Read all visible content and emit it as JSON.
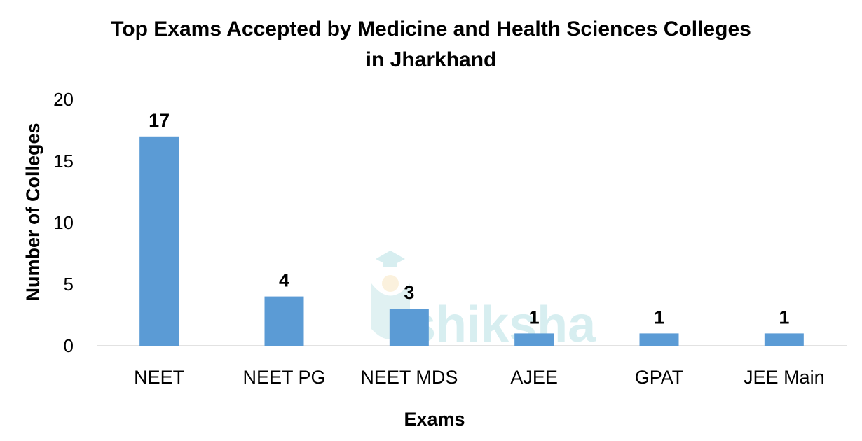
{
  "watermark": {
    "text": "shiksha",
    "icon": "graduation-cap-icon"
  },
  "chart_data": {
    "type": "bar",
    "title_lines": [
      "Top Exams Accepted by Medicine and Health Sciences Colleges",
      "in Jharkhand"
    ],
    "xlabel": "Exams",
    "ylabel": "Number of Colleges",
    "categories": [
      "NEET",
      "NEET PG",
      "NEET MDS",
      "AJEE",
      "GPAT",
      "JEE Main"
    ],
    "values": [
      17,
      4,
      3,
      1,
      1,
      1
    ],
    "data_labels": [
      "17",
      "4",
      "3",
      "1",
      "1",
      "1"
    ],
    "ylim": [
      0,
      20
    ],
    "yticks": [
      0,
      5,
      10,
      15,
      20
    ],
    "bar_color": "#5b9bd5",
    "grid": false,
    "legend": "none"
  }
}
